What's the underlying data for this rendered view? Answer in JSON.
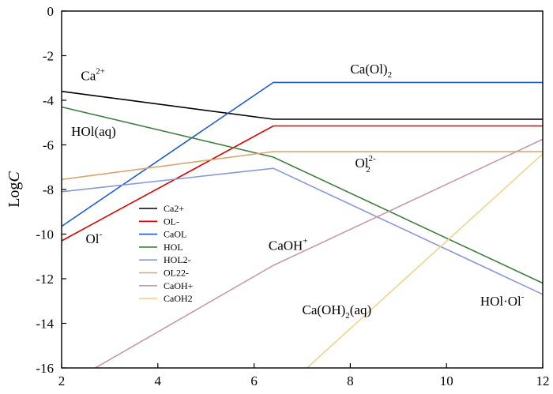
{
  "chart_data": {
    "type": "line",
    "ylabel": "LogC",
    "xlabel": "",
    "xlim": [
      2,
      12
    ],
    "ylim": [
      -16,
      0
    ],
    "xticks": [
      2,
      4,
      6,
      8,
      10,
      12
    ],
    "yticks": [
      0,
      -2,
      -4,
      -6,
      -8,
      -10,
      -12,
      -14,
      -16
    ],
    "series": [
      {
        "name": "Ca2+",
        "color": "#000000",
        "points": [
          [
            2,
            -3.6
          ],
          [
            6.4,
            -4.85
          ],
          [
            12,
            -4.85
          ]
        ]
      },
      {
        "name": "OL-",
        "color": "#e00000",
        "points": [
          [
            2,
            -10.3
          ],
          [
            6.4,
            -5.15
          ],
          [
            12,
            -5.15
          ]
        ]
      },
      {
        "name": "CaOL",
        "color": "#1c5bd4",
        "points": [
          [
            2,
            -9.65
          ],
          [
            6.4,
            -3.2
          ],
          [
            12,
            -3.2
          ]
        ]
      },
      {
        "name": "HOL",
        "color": "#3e7e3e",
        "points": [
          [
            2,
            -4.3
          ],
          [
            6.4,
            -6.55
          ],
          [
            12,
            -12.2
          ]
        ]
      },
      {
        "name": "HOL2-",
        "color": "#8898dc",
        "points": [
          [
            2,
            -8.1
          ],
          [
            6.4,
            -7.05
          ],
          [
            12,
            -12.7
          ]
        ]
      },
      {
        "name": "OL22-",
        "color": "#d9a66b",
        "points": [
          [
            2,
            -7.55
          ],
          [
            6.4,
            -6.3
          ],
          [
            12,
            -6.3
          ]
        ]
      },
      {
        "name": "CaOH+",
        "color": "#c89aa8",
        "points": [
          [
            2.7,
            -16
          ],
          [
            6.4,
            -11.4
          ],
          [
            12,
            -5.75
          ]
        ]
      },
      {
        "name": "CaOH2",
        "color": "#efd48e",
        "points": [
          [
            7.1,
            -16
          ],
          [
            12,
            -6.4
          ]
        ]
      }
    ],
    "annotations": [
      {
        "base": "Ca",
        "sup": "2+",
        "sub": "",
        "x": 2.4,
        "y": -3.1
      },
      {
        "base": "HOl(aq)",
        "sup": "",
        "sub": "",
        "x": 2.2,
        "y": -5.6
      },
      {
        "base": "Ol",
        "sup": "-",
        "sub": "",
        "x": 2.5,
        "y": -10.4
      },
      {
        "base": "Ca(Ol)",
        "sup": "",
        "sub": "2",
        "x": 8.0,
        "y": -2.8
      },
      {
        "base": "Ol",
        "sup": "2-",
        "sub": "2",
        "x": 8.1,
        "y": -7.0
      },
      {
        "base": "CaOH",
        "sup": "+",
        "sub": "",
        "x": 6.3,
        "y": -10.7
      },
      {
        "base": "Ca(OH)",
        "sup": "",
        "sub": "2",
        "x": 7.0,
        "y": -13.6
      },
      {
        "base": "(aq)",
        "sup": "",
        "sub": "",
        "x": 7.0,
        "y": -13.6
      },
      {
        "base": "HOl·Ol",
        "sup": "-",
        "sub": "",
        "x": 10.7,
        "y": -13.2
      }
    ],
    "legend": {
      "position": "lower-left"
    }
  }
}
